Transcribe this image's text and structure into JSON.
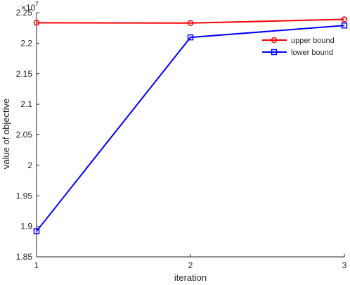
{
  "chart_data": {
    "type": "line",
    "title": "",
    "xlabel": "iteration",
    "ylabel": "value of objective",
    "exponent_base": "×10",
    "exponent_power": "7",
    "x": [
      1,
      2,
      3
    ],
    "xticks": [
      1,
      2,
      3
    ],
    "xtick_labels": [
      "1",
      "2",
      "3"
    ],
    "yticks": [
      1.85,
      1.9,
      1.95,
      2.0,
      2.05,
      2.1,
      2.15,
      2.2,
      2.25
    ],
    "ytick_labels": [
      "1.85",
      "1.9",
      "1.95",
      "2",
      "2.05",
      "2.1",
      "2.15",
      "2.2",
      "2.25"
    ],
    "xlim": [
      1,
      3
    ],
    "ylim": [
      1.85,
      2.25
    ],
    "grid": false,
    "legend_position": "top-right",
    "series": [
      {
        "name": "upper bound",
        "color": "#ff0000",
        "marker": "circle",
        "values": [
          2.2335,
          2.233,
          2.239
        ]
      },
      {
        "name": "lower bound",
        "color": "#0000ff",
        "marker": "square",
        "values": [
          1.892,
          2.2095,
          2.229
        ]
      }
    ]
  }
}
